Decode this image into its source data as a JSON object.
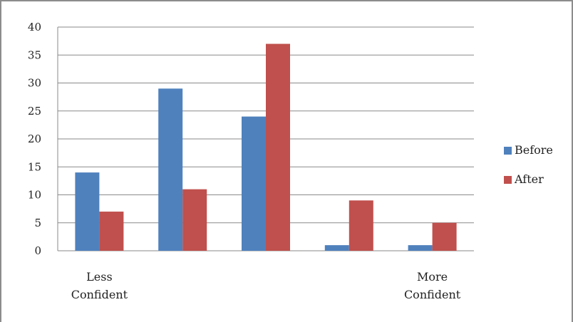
{
  "chart_data": {
    "type": "bar",
    "categories": [
      [
        "Less",
        "Confident"
      ],
      [
        "",
        ""
      ],
      [
        "",
        ""
      ],
      [
        "",
        ""
      ],
      [
        "More",
        "Confident"
      ]
    ],
    "series": [
      {
        "name": "Before",
        "color": "#4f81bd",
        "values": [
          14,
          29,
          24,
          1,
          1
        ]
      },
      {
        "name": "After",
        "color": "#c0504d",
        "values": [
          7,
          11,
          37,
          9,
          5
        ]
      }
    ],
    "ylim": [
      0,
      40
    ],
    "yticks": [
      0,
      5,
      10,
      15,
      20,
      25,
      30,
      35,
      40
    ],
    "grid": true,
    "legend": "right"
  }
}
